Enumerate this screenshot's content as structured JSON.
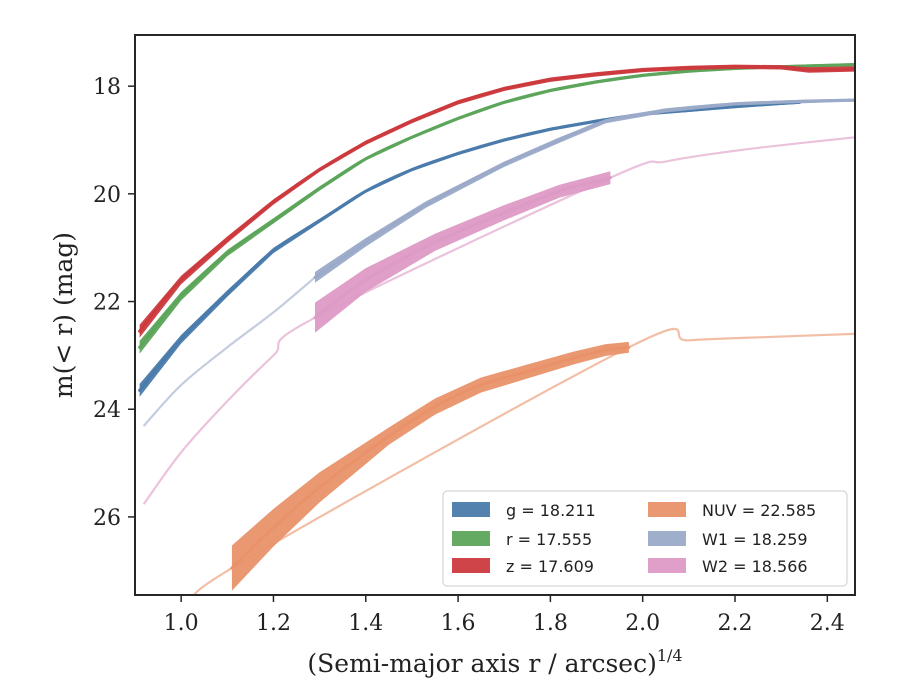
{
  "chart_data": {
    "type": "line",
    "xlabel": "(Semi-major axis r / arcsec)",
    "xlabel_exponent": "1/4",
    "ylabel": "m(< r) (mag)",
    "xlim": [
      0.9,
      2.46
    ],
    "ylim": [
      27.45,
      17.05
    ],
    "y_inverted": true,
    "grid": false,
    "legend_position": "lower-right",
    "xticks": [
      "1.0",
      "1.2",
      "1.4",
      "1.6",
      "1.8",
      "2.0",
      "2.2",
      "2.4"
    ],
    "yticks": [
      "18",
      "20",
      "22",
      "24",
      "26"
    ],
    "series": [
      {
        "name": "g",
        "legend": "g = 18.211",
        "color": "#4a7bab",
        "x": [
          0.91,
          1.0,
          1.1,
          1.2,
          1.3,
          1.4,
          1.5,
          1.6,
          1.7,
          1.8,
          1.9,
          2.0,
          2.1,
          2.2,
          2.3,
          2.34
        ],
        "y": [
          23.65,
          22.7,
          21.85,
          21.05,
          20.5,
          19.95,
          19.55,
          19.25,
          19.0,
          18.8,
          18.65,
          18.52,
          18.45,
          18.38,
          18.32,
          18.3
        ],
        "band_halfwidth": [
          0.12,
          0.08,
          0.06,
          0.05,
          0.04,
          0.03,
          0.03,
          0.03,
          0.03,
          0.03,
          0.03,
          0.03,
          0.03,
          0.03,
          0.03,
          0.03
        ],
        "ext_x": [
          2.34,
          2.4
        ],
        "ext_y": [
          18.3,
          18.28
        ]
      },
      {
        "name": "r",
        "legend": "r = 17.555",
        "color": "#5ca55a",
        "x": [
          0.91,
          1.0,
          1.1,
          1.2,
          1.3,
          1.4,
          1.5,
          1.6,
          1.7,
          1.8,
          1.9,
          2.0,
          2.1,
          2.2,
          2.3,
          2.46
        ],
        "y": [
          22.85,
          21.9,
          21.1,
          20.5,
          19.9,
          19.35,
          18.95,
          18.6,
          18.3,
          18.08,
          17.92,
          17.8,
          17.72,
          17.67,
          17.64,
          17.6
        ],
        "band_halfwidth": [
          0.12,
          0.08,
          0.06,
          0.05,
          0.04,
          0.03,
          0.03,
          0.03,
          0.03,
          0.03,
          0.03,
          0.03,
          0.03,
          0.03,
          0.03,
          0.03
        ]
      },
      {
        "name": "z",
        "legend": "z = 17.609",
        "color": "#cc3a3e",
        "x": [
          0.91,
          1.0,
          1.1,
          1.2,
          1.3,
          1.4,
          1.5,
          1.6,
          1.7,
          1.8,
          1.9,
          2.0,
          2.1,
          2.2,
          2.3,
          2.36,
          2.46
        ],
        "y": [
          22.55,
          21.6,
          20.85,
          20.15,
          19.55,
          19.05,
          18.65,
          18.3,
          18.05,
          17.88,
          17.78,
          17.7,
          17.66,
          17.64,
          17.65,
          17.7,
          17.68
        ],
        "band_halfwidth": [
          0.12,
          0.08,
          0.06,
          0.05,
          0.04,
          0.04,
          0.04,
          0.04,
          0.04,
          0.04,
          0.04,
          0.04,
          0.04,
          0.04,
          0.04,
          0.05,
          0.05
        ]
      },
      {
        "name": "NUV",
        "legend": "NUV = 22.585",
        "color": "#e9926a",
        "x": [
          1.11,
          1.2,
          1.3,
          1.45,
          1.55,
          1.65,
          1.75,
          1.85,
          1.92,
          1.97
        ],
        "y": [
          26.95,
          26.2,
          25.45,
          24.5,
          23.95,
          23.55,
          23.3,
          23.05,
          22.9,
          22.85
        ],
        "band_halfwidth": [
          0.42,
          0.35,
          0.28,
          0.16,
          0.15,
          0.14,
          0.13,
          0.12,
          0.11,
          0.1
        ],
        "ext_x": [
          0.91,
          1.0,
          1.05,
          1.11,
          1.97,
          2.1,
          2.3,
          2.46
        ],
        "ext_y": [
          28.9,
          28.2,
          27.6,
          26.95,
          22.85,
          22.72,
          22.65,
          22.6
        ]
      },
      {
        "name": "W1",
        "legend": "W1 = 18.259",
        "color": "#9aaac8",
        "x": [
          1.29,
          1.4,
          1.53,
          1.7,
          1.82,
          1.92,
          2.05,
          2.2,
          2.35,
          2.46
        ],
        "y": [
          21.55,
          20.9,
          20.2,
          19.45,
          19.0,
          18.65,
          18.45,
          18.33,
          18.28,
          18.26
        ],
        "band_halfwidth": [
          0.1,
          0.08,
          0.06,
          0.05,
          0.05,
          0.04,
          0.04,
          0.03,
          0.03,
          0.03
        ],
        "ext_x": [
          0.92,
          1.0,
          1.1,
          1.2,
          1.29
        ],
        "ext_y": [
          24.3,
          23.55,
          22.85,
          22.2,
          21.55
        ]
      },
      {
        "name": "W2",
        "legend": "W2 = 18.566",
        "color": "#dd9ac5",
        "x": [
          1.29,
          1.4,
          1.55,
          1.7,
          1.82,
          1.93
        ],
        "y": [
          22.3,
          21.6,
          20.9,
          20.35,
          19.95,
          19.7
        ],
        "band_halfwidth": [
          0.28,
          0.22,
          0.16,
          0.14,
          0.12,
          0.12
        ],
        "ext_x": [
          0.92,
          1.0,
          1.1,
          1.2,
          1.29,
          1.93,
          2.05,
          2.2,
          2.35,
          2.46
        ],
        "ext_y": [
          25.75,
          24.8,
          23.85,
          23.0,
          22.3,
          19.7,
          19.4,
          19.2,
          19.05,
          18.95
        ]
      }
    ]
  }
}
